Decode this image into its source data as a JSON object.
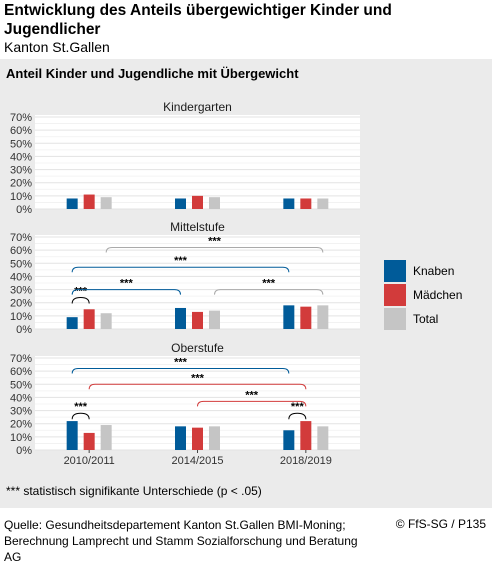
{
  "title": "Entwicklung des Anteils übergewichtiger Kinder und Jugendlicher",
  "subtitle": "Kanton St.Gallen",
  "chart_title": "Anteil Kinder und Jugendliche mit Übergewicht",
  "footnote": "*** statistisch signifikante Unterschiede (p < .05)",
  "source": "Quelle: Gesundheitsdepartement Kanton St.Gallen BMI-Moning; Berechnung Lamprecht und Stamm Sozialforschung und Beratung AG",
  "credit": "© FfS-SG / P135",
  "legend": [
    {
      "label": "Knaben",
      "color": "#005b99"
    },
    {
      "label": "Mädchen",
      "color": "#d23b3b"
    },
    {
      "label": "Total",
      "color": "#c5c5c5"
    }
  ],
  "chart_data": {
    "type": "bar",
    "categories": [
      "2010/2011",
      "2014/2015",
      "2018/2019"
    ],
    "ylim": [
      0,
      70
    ],
    "yticks": [
      "0%",
      "10%",
      "20%",
      "30%",
      "40%",
      "50%",
      "60%",
      "70%"
    ],
    "grid": true,
    "legend_position": "right",
    "panels": [
      {
        "name": "Kindergarten",
        "series": [
          {
            "name": "Knaben",
            "values": [
              8,
              8,
              8
            ]
          },
          {
            "name": "Mädchen",
            "values": [
              11,
              10,
              8
            ]
          },
          {
            "name": "Total",
            "values": [
              9,
              9,
              8
            ]
          }
        ],
        "significance": []
      },
      {
        "name": "Mittelstufe",
        "series": [
          {
            "name": "Knaben",
            "values": [
              9,
              16,
              18
            ]
          },
          {
            "name": "Mädchen",
            "values": [
              15,
              13,
              17
            ]
          },
          {
            "name": "Total",
            "values": [
              12,
              14,
              18
            ]
          }
        ],
        "significance": [
          {
            "label": "***",
            "style": "arc",
            "color": "#000000",
            "from": [
              0,
              "Knaben"
            ],
            "to": [
              0,
              "Mädchen"
            ],
            "level": 24
          },
          {
            "label": "***",
            "style": "bracket",
            "color": "#005b99",
            "from": [
              0,
              "Knaben"
            ],
            "to": [
              1,
              "Knaben"
            ],
            "level": 30
          },
          {
            "label": "***",
            "style": "bracket",
            "color": "#005b99",
            "from": [
              0,
              "Knaben"
            ],
            "to": [
              2,
              "Knaben"
            ],
            "level": 47
          },
          {
            "label": "***",
            "style": "bracket",
            "color": "#aaaaaa",
            "from": [
              0,
              "Total"
            ],
            "to": [
              2,
              "Total"
            ],
            "level": 62
          },
          {
            "label": "***",
            "style": "bracket",
            "color": "#aaaaaa",
            "from": [
              1,
              "Total"
            ],
            "to": [
              2,
              "Total"
            ],
            "level": 30
          }
        ]
      },
      {
        "name": "Oberstufe",
        "series": [
          {
            "name": "Knaben",
            "values": [
              22,
              18,
              15
            ]
          },
          {
            "name": "Mädchen",
            "values": [
              13,
              17,
              22
            ]
          },
          {
            "name": "Total",
            "values": [
              19,
              18,
              18
            ]
          }
        ],
        "significance": [
          {
            "label": "***",
            "style": "arc",
            "color": "#000000",
            "from": [
              0,
              "Knaben"
            ],
            "to": [
              0,
              "Mädchen"
            ],
            "level": 28
          },
          {
            "label": "***",
            "style": "bracket",
            "color": "#005b99",
            "from": [
              0,
              "Knaben"
            ],
            "to": [
              2,
              "Knaben"
            ],
            "level": 62
          },
          {
            "label": "***",
            "style": "bracket",
            "color": "#d23b3b",
            "from": [
              0,
              "Mädchen"
            ],
            "to": [
              2,
              "Mädchen"
            ],
            "level": 50
          },
          {
            "label": "***",
            "style": "bracket",
            "color": "#d23b3b",
            "from": [
              1,
              "Mädchen"
            ],
            "to": [
              2,
              "Mädchen"
            ],
            "level": 37
          },
          {
            "label": "***",
            "style": "arc",
            "color": "#000000",
            "from": [
              2,
              "Knaben"
            ],
            "to": [
              2,
              "Mädchen"
            ],
            "level": 28
          }
        ]
      }
    ]
  }
}
